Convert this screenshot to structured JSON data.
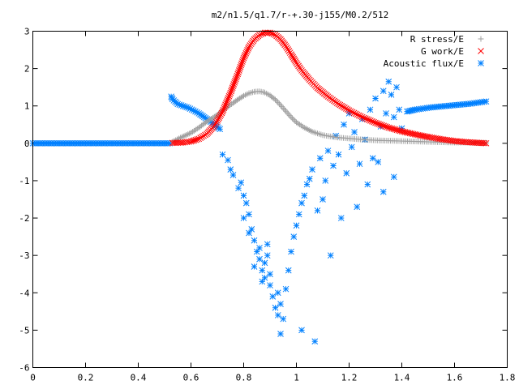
{
  "chart_data": {
    "type": "scatter",
    "title": "m2/n1.5/q1.7/r-+.30-j155/M0.2/512",
    "xlabel": "",
    "ylabel": "",
    "xlim": [
      0,
      1.8
    ],
    "ylim": [
      -6,
      3
    ],
    "xticks": [
      "0",
      "0.2",
      "0.4",
      "0.6",
      "0.8",
      "1",
      "1.2",
      "1.4",
      "1.6",
      "1.8"
    ],
    "yticks": [
      "3",
      "2",
      "1",
      "0",
      "-1",
      "-2",
      "-3",
      "-4",
      "-5",
      "-6"
    ],
    "grid": false,
    "legend_position": "top-right",
    "series": [
      {
        "name": "R stress/E",
        "marker": "+",
        "color": "#a0a0a0",
        "x": [
          0.53,
          0.56,
          0.6,
          0.63,
          0.66,
          0.7,
          0.73,
          0.76,
          0.78,
          0.8,
          0.82,
          0.84,
          0.86,
          0.88,
          0.9,
          0.92,
          0.94,
          0.96,
          0.98,
          1.0,
          1.03,
          1.06,
          1.1,
          1.15,
          1.2,
          1.25,
          1.3,
          1.35,
          1.4,
          1.45,
          1.5,
          1.55,
          1.6,
          1.65,
          1.7,
          1.72
        ],
        "y": [
          0.04,
          0.15,
          0.28,
          0.42,
          0.58,
          0.76,
          0.93,
          1.08,
          1.18,
          1.27,
          1.34,
          1.38,
          1.39,
          1.36,
          1.28,
          1.17,
          1.02,
          0.86,
          0.7,
          0.56,
          0.42,
          0.31,
          0.22,
          0.16,
          0.13,
          0.1,
          0.08,
          0.07,
          0.06,
          0.05,
          0.04,
          0.03,
          0.02,
          0.02,
          0.01,
          0.01
        ]
      },
      {
        "name": "G work/E",
        "marker": "x",
        "color": "#ff0000",
        "x": [
          0.53,
          0.57,
          0.6,
          0.63,
          0.66,
          0.69,
          0.72,
          0.75,
          0.78,
          0.8,
          0.82,
          0.84,
          0.86,
          0.88,
          0.9,
          0.92,
          0.94,
          0.96,
          0.98,
          1.0,
          1.02,
          1.05,
          1.08,
          1.12,
          1.16,
          1.2,
          1.25,
          1.3,
          1.35,
          1.4,
          1.45,
          1.5,
          1.55,
          1.6,
          1.65,
          1.7,
          1.72
        ],
        "y": [
          0.01,
          0.02,
          0.05,
          0.12,
          0.25,
          0.48,
          0.85,
          1.35,
          1.9,
          2.28,
          2.58,
          2.78,
          2.9,
          2.96,
          2.96,
          2.9,
          2.78,
          2.6,
          2.38,
          2.15,
          1.95,
          1.7,
          1.48,
          1.25,
          1.05,
          0.88,
          0.7,
          0.55,
          0.42,
          0.32,
          0.24,
          0.17,
          0.11,
          0.06,
          0.03,
          0.01,
          0.0
        ]
      },
      {
        "name": "Acoustic flux/E",
        "marker": "*",
        "color": "#0080ff",
        "x": [
          0.0,
          0.04,
          0.08,
          0.12,
          0.16,
          0.2,
          0.24,
          0.28,
          0.32,
          0.36,
          0.4,
          0.44,
          0.48,
          0.52,
          0.525,
          0.53,
          0.55,
          0.57,
          0.59,
          0.61,
          0.63,
          0.65,
          0.67,
          0.69,
          0.71,
          1.42,
          1.45,
          1.48,
          1.51,
          1.54,
          1.57,
          1.6,
          1.63,
          1.66,
          1.69,
          1.72,
          0.72,
          0.74,
          0.75,
          0.76,
          0.78,
          0.79,
          0.8,
          0.81,
          0.82,
          0.83,
          0.84,
          0.85,
          0.86,
          0.86,
          0.87,
          0.88,
          0.88,
          0.89,
          0.9,
          0.9,
          0.91,
          0.92,
          0.93,
          0.94,
          0.94,
          0.95,
          0.96,
          0.97,
          0.98,
          0.99,
          1.0,
          1.01,
          1.02,
          1.03,
          1.04,
          1.05,
          1.06,
          1.08,
          1.09,
          1.1,
          1.11,
          1.12,
          1.14,
          1.15,
          1.16,
          1.18,
          1.19,
          1.2,
          1.21,
          1.22,
          1.24,
          1.25,
          1.26,
          1.28,
          1.29,
          1.3,
          1.32,
          1.33,
          1.34,
          1.35,
          1.36,
          1.37,
          1.38,
          1.39,
          1.4,
          0.8,
          0.82,
          0.84,
          0.87,
          0.89,
          0.93,
          1.02,
          1.07,
          1.13,
          1.17,
          1.23,
          1.27,
          1.31,
          1.33,
          1.37
        ],
        "y": [
          0,
          0,
          0,
          0,
          0,
          0,
          0,
          0,
          0,
          0,
          0,
          0,
          0,
          0,
          1.25,
          1.18,
          1.05,
          1.0,
          0.95,
          0.88,
          0.8,
          0.7,
          0.6,
          0.5,
          0.38,
          0.85,
          0.9,
          0.93,
          0.96,
          0.98,
          1.0,
          1.02,
          1.04,
          1.06,
          1.09,
          1.12,
          -0.3,
          -0.45,
          -0.7,
          -0.85,
          -1.2,
          -1.05,
          -1.4,
          -1.6,
          -1.9,
          -2.3,
          -2.6,
          -2.9,
          -3.1,
          -2.8,
          -3.4,
          -3.6,
          -3.2,
          -3.0,
          -3.5,
          -3.8,
          -4.1,
          -4.4,
          -4.6,
          -4.3,
          -5.1,
          -4.7,
          -3.9,
          -3.4,
          -2.9,
          -2.5,
          -2.2,
          -1.9,
          -1.6,
          -1.4,
          -1.1,
          -0.95,
          -0.7,
          -1.8,
          -0.4,
          -1.5,
          -1.0,
          -0.2,
          -0.6,
          0.2,
          -0.3,
          0.5,
          -0.8,
          0.8,
          -0.1,
          0.3,
          -0.55,
          0.65,
          0.1,
          0.9,
          -0.4,
          1.2,
          0.45,
          1.4,
          0.8,
          1.65,
          1.3,
          0.7,
          1.5,
          0.9,
          0.4,
          -2.0,
          -2.4,
          -3.3,
          -3.7,
          -2.7,
          -4.0,
          -5.0,
          -5.3,
          -3.0,
          -2.0,
          -1.7,
          -1.1,
          -0.5,
          -1.3,
          -0.9
        ]
      }
    ]
  }
}
